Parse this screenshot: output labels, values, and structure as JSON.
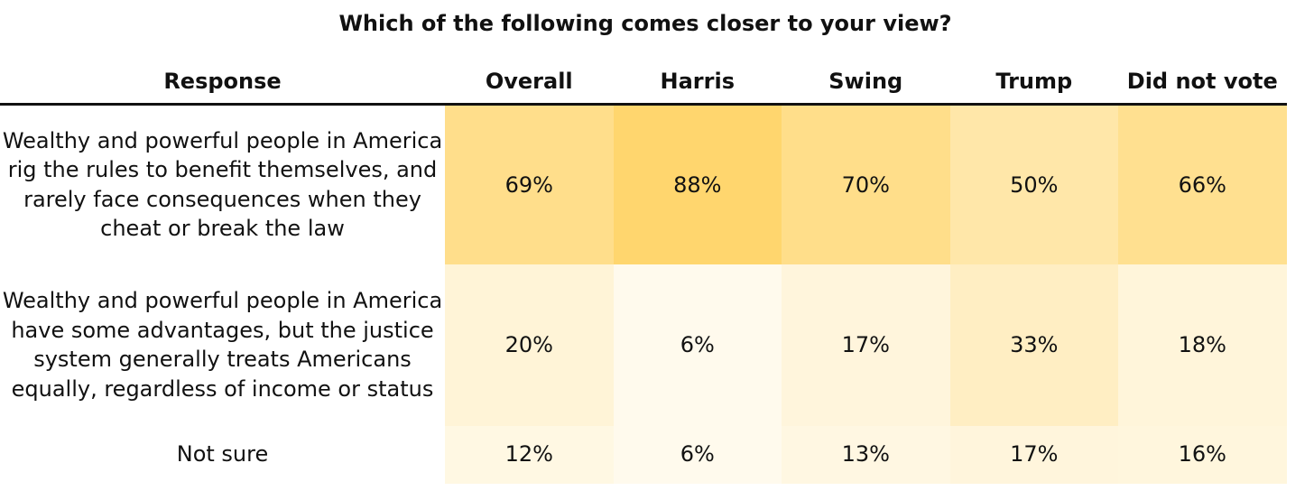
{
  "chart_data": {
    "type": "table",
    "title": "Which of the following comes closer to your view?",
    "columns": [
      "Response",
      "Overall",
      "Harris",
      "Swing",
      "Trump",
      "Did not vote"
    ],
    "rows": [
      {
        "response": "Wealthy and powerful people in America rig the rules to benefit themselves, and rarely face consequences when they cheat or break the law",
        "values": [
          69,
          88,
          70,
          50,
          66
        ],
        "labels": [
          "69%",
          "88%",
          "70%",
          "50%",
          "66%"
        ]
      },
      {
        "response": "Wealthy and powerful people in America have some advantages, but the justice system generally treats Americans equally, regardless of income or status",
        "values": [
          20,
          6,
          17,
          33,
          18
        ],
        "labels": [
          "20%",
          "6%",
          "17%",
          "33%",
          "18%"
        ]
      },
      {
        "response": "Not sure",
        "values": [
          12,
          6,
          13,
          17,
          16
        ],
        "labels": [
          "12%",
          "6%",
          "13%",
          "17%",
          "16%"
        ]
      }
    ],
    "color_scale": {
      "low": "#fffdf6",
      "high": "#ffd66e",
      "min_value": 0,
      "max_value": 88
    }
  }
}
